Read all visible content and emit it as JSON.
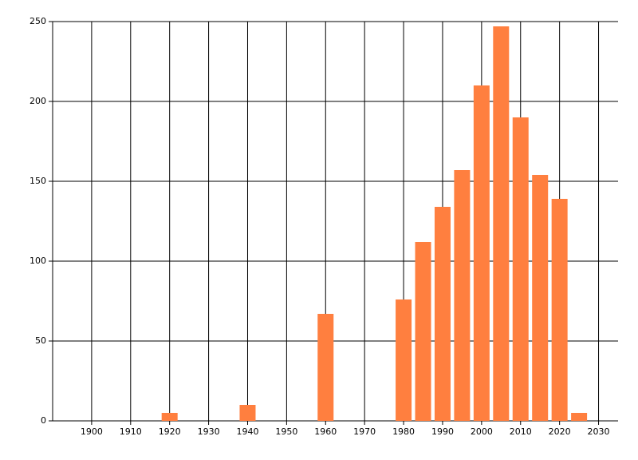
{
  "chart_data": {
    "type": "bar",
    "x": [
      1920,
      1940,
      1960,
      1980,
      1985,
      1990,
      1995,
      2000,
      2005,
      2010,
      2015,
      2020,
      2025
    ],
    "values": [
      5,
      10,
      67,
      76,
      112,
      134,
      157,
      210,
      247,
      190,
      154,
      139,
      5
    ],
    "color": "#ff7f3f",
    "xlim": [
      1890,
      2035
    ],
    "xticks": [
      1900,
      1910,
      1920,
      1930,
      1940,
      1950,
      1960,
      1970,
      1980,
      1990,
      2000,
      2010,
      2020,
      2030
    ],
    "ylim": [
      0,
      250
    ],
    "yticks": [
      0,
      50,
      100,
      150,
      200,
      250
    ],
    "grid": true
  }
}
